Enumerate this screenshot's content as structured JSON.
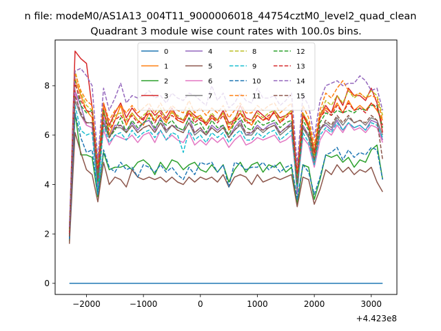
{
  "chart_data": {
    "type": "line",
    "suptitle": "n file: modeM0/AS1A13_004T11_9000006018_44754cztM0_level2_quad_clean",
    "title": "Quadrant 3 module wise count rates with 100.0s bins.",
    "xlabel": "",
    "ylabel": "",
    "x_offset_label": "+4.423e8",
    "xlim": [
      -2550,
      3450
    ],
    "ylim": [
      -0.45,
      9.85
    ],
    "xticks": [
      -2000,
      -1000,
      0,
      1000,
      2000,
      3000
    ],
    "xtick_labels": [
      "−2000",
      "−1000",
      "0",
      "1000",
      "2000",
      "3000"
    ],
    "yticks": [
      0,
      2,
      4,
      6,
      8
    ],
    "ytick_labels": [
      "0",
      "2",
      "4",
      "6",
      "8"
    ],
    "grid": false,
    "legend": {
      "placement": "top-center",
      "columns": 4
    },
    "x": [
      -2300,
      -2200,
      -2100,
      -2000,
      -1900,
      -1800,
      -1700,
      -1600,
      -1500,
      -1400,
      -1300,
      -1200,
      -1100,
      -1000,
      -900,
      -800,
      -700,
      -600,
      -500,
      -400,
      -300,
      -200,
      -100,
      0,
      100,
      200,
      300,
      400,
      500,
      600,
      700,
      800,
      900,
      1000,
      1100,
      1200,
      1300,
      1400,
      1500,
      1600,
      1700,
      1800,
      1900,
      2000,
      2100,
      2200,
      2300,
      2400,
      2500,
      2600,
      2700,
      2800,
      2900,
      3000,
      3100,
      3200
    ],
    "series": [
      {
        "name": "0",
        "color": "#1f77b4",
        "style": "solid",
        "values": [
          0,
          0,
          0,
          0,
          0,
          0,
          0,
          0,
          0,
          0,
          0,
          0,
          0,
          0,
          0,
          0,
          0,
          0,
          0,
          0,
          0,
          0,
          0,
          0,
          0,
          0,
          0,
          0,
          0,
          0,
          0,
          0,
          0,
          0,
          0,
          0,
          0,
          0,
          0,
          0,
          0,
          0,
          0,
          0,
          0,
          0,
          0,
          0,
          0,
          0,
          0,
          0,
          0,
          0,
          0,
          0
        ]
      },
      {
        "name": "1",
        "color": "#ff7f0e",
        "style": "solid",
        "values": [
          2.0,
          8.3,
          7.6,
          7.0,
          6.7,
          3.9,
          7.1,
          6.0,
          6.6,
          7.2,
          6.4,
          6.9,
          6.6,
          6.4,
          6.9,
          6.6,
          6.8,
          6.5,
          7.0,
          6.6,
          6.5,
          6.9,
          6.7,
          6.8,
          6.4,
          6.7,
          6.6,
          6.9,
          6.2,
          6.5,
          6.9,
          6.6,
          6.4,
          6.8,
          6.6,
          6.7,
          6.9,
          6.5,
          6.8,
          6.9,
          3.8,
          6.8,
          6.3,
          5.2,
          6.7,
          7.1,
          6.9,
          7.3,
          6.9,
          7.4,
          7.0,
          7.2,
          7.0,
          7.3,
          7.0,
          6.6
        ]
      },
      {
        "name": "2",
        "color": "#2ca02c",
        "style": "solid",
        "values": [
          1.7,
          6.9,
          5.2,
          5.2,
          5.1,
          3.5,
          5.3,
          4.6,
          4.7,
          4.7,
          4.8,
          4.6,
          4.9,
          5.0,
          4.8,
          4.4,
          4.9,
          4.6,
          5.0,
          4.9,
          4.6,
          4.8,
          4.9,
          4.6,
          4.5,
          4.8,
          4.5,
          4.8,
          4.1,
          4.6,
          4.9,
          4.5,
          4.8,
          4.9,
          4.5,
          4.8,
          4.7,
          4.9,
          4.5,
          4.7,
          3.2,
          4.8,
          4.7,
          3.4,
          4.2,
          5.2,
          5.1,
          5.2,
          4.9,
          5.1,
          4.7,
          5.0,
          4.9,
          5.4,
          5.6,
          4.2
        ]
      },
      {
        "name": "3",
        "color": "#d62728",
        "style": "solid",
        "values": [
          2.1,
          9.4,
          9.1,
          8.9,
          7.1,
          4.5,
          7.3,
          6.4,
          6.9,
          7.3,
          6.7,
          7.1,
          6.8,
          6.6,
          7.1,
          6.8,
          7.0,
          6.7,
          7.1,
          6.7,
          6.6,
          7.0,
          6.8,
          6.6,
          6.5,
          6.8,
          6.6,
          7.0,
          6.5,
          6.6,
          7.2,
          6.7,
          6.6,
          7.0,
          6.8,
          6.6,
          7.0,
          6.7,
          6.8,
          7.0,
          4.2,
          6.9,
          6.4,
          5.3,
          6.8,
          7.2,
          6.9,
          7.6,
          7.2,
          7.9,
          7.6,
          7.6,
          7.4,
          7.9,
          7.3,
          6.1
        ]
      },
      {
        "name": "4",
        "color": "#9467bd",
        "style": "solid",
        "values": [
          1.9,
          7.8,
          7.2,
          6.4,
          6.3,
          3.7,
          6.7,
          5.9,
          6.4,
          6.4,
          6.2,
          6.5,
          6.2,
          6.5,
          6.6,
          6.2,
          6.7,
          6.2,
          6.4,
          6.3,
          6.2,
          6.7,
          6.1,
          6.3,
          6.0,
          6.4,
          6.2,
          6.4,
          5.9,
          6.3,
          6.6,
          6.0,
          6.1,
          6.4,
          6.2,
          6.4,
          6.5,
          6.1,
          6.3,
          6.5,
          3.6,
          6.4,
          6.0,
          4.9,
          6.3,
          6.4,
          6.2,
          6.6,
          6.2,
          6.5,
          6.3,
          6.4,
          6.2,
          6.6,
          6.5,
          5.8
        ]
      },
      {
        "name": "5",
        "color": "#8c564b",
        "style": "solid",
        "values": [
          1.6,
          6.1,
          5.3,
          4.6,
          4.4,
          3.3,
          4.9,
          4.0,
          4.3,
          4.2,
          3.9,
          4.6,
          4.3,
          4.2,
          4.3,
          4.2,
          4.3,
          4.1,
          4.3,
          4.1,
          4.0,
          4.3,
          4.1,
          4.3,
          4.2,
          4.3,
          4.1,
          4.4,
          3.9,
          4.3,
          4.4,
          4.3,
          4.0,
          4.4,
          4.1,
          4.2,
          4.3,
          4.2,
          4.3,
          4.4,
          3.1,
          4.3,
          4.2,
          3.2,
          3.8,
          4.6,
          4.4,
          4.8,
          4.5,
          4.7,
          4.4,
          4.6,
          4.5,
          4.7,
          4.1,
          3.7
        ]
      },
      {
        "name": "6",
        "color": "#e377c2",
        "style": "solid",
        "values": [
          2.0,
          7.8,
          6.8,
          6.4,
          6.3,
          4.4,
          6.2,
          5.6,
          6.0,
          5.9,
          5.8,
          6.0,
          5.7,
          6.0,
          6.1,
          5.7,
          6.2,
          5.8,
          6.0,
          5.8,
          5.7,
          6.1,
          5.6,
          5.8,
          5.6,
          5.9,
          5.7,
          5.9,
          5.5,
          5.8,
          6.0,
          5.6,
          5.7,
          5.9,
          5.8,
          5.9,
          6.0,
          5.7,
          5.8,
          6.0,
          3.9,
          5.9,
          5.6,
          4.7,
          5.8,
          6.2,
          6.0,
          6.4,
          6.1,
          6.5,
          6.2,
          6.3,
          6.1,
          6.4,
          6.3,
          5.7
        ]
      },
      {
        "name": "7",
        "color": "#7f7f7f",
        "style": "solid",
        "values": [
          2.0,
          7.4,
          6.8,
          6.5,
          6.5,
          4.4,
          6.5,
          5.9,
          6.3,
          6.3,
          6.1,
          6.4,
          6.1,
          6.3,
          6.4,
          6.1,
          6.5,
          6.1,
          6.4,
          6.2,
          6.1,
          6.5,
          6.0,
          6.2,
          6.0,
          6.3,
          6.1,
          6.3,
          5.9,
          6.2,
          6.4,
          6.0,
          6.0,
          6.3,
          6.1,
          6.3,
          6.4,
          6.0,
          6.2,
          6.4,
          3.8,
          6.3,
          5.9,
          4.8,
          6.2,
          6.5,
          6.3,
          6.7,
          6.4,
          6.7,
          6.5,
          6.6,
          6.4,
          6.7,
          6.6,
          6.0
        ]
      },
      {
        "name": "8",
        "color": "#bcbd22",
        "style": "dashed",
        "values": [
          2.1,
          8.6,
          7.7,
          7.2,
          7.0,
          4.7,
          7.0,
          6.3,
          6.8,
          6.9,
          6.6,
          6.9,
          6.6,
          6.8,
          7.0,
          6.6,
          7.1,
          6.6,
          6.9,
          6.8,
          6.6,
          7.1,
          6.6,
          6.8,
          6.5,
          6.9,
          6.6,
          6.9,
          6.4,
          6.7,
          7.0,
          6.6,
          6.6,
          6.9,
          6.7,
          6.9,
          7.0,
          6.6,
          6.8,
          7.0,
          4.3,
          6.9,
          6.5,
          5.4,
          6.8,
          7.4,
          7.2,
          7.6,
          7.3,
          7.8,
          7.5,
          7.7,
          7.5,
          7.8,
          7.6,
          6.8
        ]
      },
      {
        "name": "9",
        "color": "#17becf",
        "style": "dashed",
        "values": [
          1.9,
          7.2,
          6.2,
          6.0,
          6.1,
          3.6,
          6.4,
          5.7,
          6.0,
          6.1,
          5.8,
          6.2,
          5.9,
          6.1,
          6.2,
          5.9,
          6.2,
          5.8,
          6.1,
          6.0,
          5.3,
          6.2,
          5.8,
          6.0,
          5.7,
          6.1,
          5.9,
          6.1,
          5.7,
          6.0,
          6.2,
          5.8,
          5.8,
          6.1,
          5.9,
          6.1,
          6.2,
          5.8,
          6.0,
          6.2,
          3.9,
          6.1,
          5.7,
          4.8,
          6.0,
          6.3,
          6.1,
          6.5,
          6.2,
          6.5,
          6.3,
          6.4,
          6.2,
          6.5,
          6.4,
          5.9
        ]
      },
      {
        "name": "10",
        "color": "#1f77b4",
        "style": "dashed",
        "values": [
          1.8,
          6.9,
          5.9,
          5.3,
          5.4,
          3.6,
          5.4,
          4.7,
          4.5,
          4.9,
          4.6,
          4.7,
          4.3,
          4.8,
          4.7,
          4.5,
          4.8,
          4.5,
          4.7,
          4.4,
          4.2,
          4.7,
          4.4,
          4.9,
          4.8,
          4.9,
          4.5,
          4.8,
          3.9,
          4.9,
          4.8,
          4.6,
          4.7,
          4.7,
          4.9,
          4.6,
          4.8,
          4.5,
          4.7,
          4.8,
          3.4,
          4.8,
          4.5,
          3.6,
          4.3,
          5.2,
          5.3,
          5.5,
          5.0,
          5.4,
          5.1,
          5.3,
          5.2,
          5.5,
          5.4,
          4.2
        ]
      },
      {
        "name": "11",
        "color": "#ff7f0e",
        "style": "dashed",
        "values": [
          2.1,
          8.5,
          7.8,
          7.4,
          7.2,
          4.8,
          7.3,
          6.6,
          7.0,
          7.2,
          6.9,
          7.2,
          6.9,
          7.1,
          7.3,
          6.9,
          7.3,
          6.9,
          7.2,
          7.0,
          6.9,
          7.4,
          6.9,
          7.1,
          6.8,
          7.1,
          6.9,
          7.2,
          6.7,
          7.0,
          7.3,
          6.9,
          6.9,
          7.2,
          7.0,
          7.2,
          7.3,
          6.9,
          7.1,
          7.3,
          4.5,
          7.2,
          6.7,
          5.6,
          7.0,
          7.7,
          7.5,
          7.9,
          8.2,
          7.8,
          7.6,
          7.7,
          7.5,
          7.6,
          7.5,
          6.6
        ]
      },
      {
        "name": "12",
        "color": "#2ca02c",
        "style": "dashed",
        "values": [
          2.2,
          8.2,
          7.2,
          6.9,
          7.0,
          4.1,
          7.0,
          5.9,
          6.2,
          6.7,
          6.1,
          6.6,
          6.3,
          6.5,
          6.7,
          6.3,
          6.6,
          6.4,
          6.6,
          6.3,
          6.2,
          6.7,
          6.4,
          6.5,
          6.1,
          6.6,
          6.3,
          6.4,
          6.0,
          6.5,
          6.7,
          6.3,
          6.2,
          6.6,
          6.4,
          6.5,
          6.6,
          6.3,
          6.5,
          6.6,
          4.0,
          6.6,
          6.2,
          5.0,
          6.5,
          6.9,
          6.8,
          7.0,
          6.9,
          7.0,
          6.9,
          7.1,
          7.0,
          7.2,
          7.2,
          6.3
        ]
      },
      {
        "name": "13",
        "color": "#d62728",
        "style": "dashed",
        "values": [
          2.0,
          8.1,
          7.4,
          7.0,
          6.9,
          4.6,
          6.9,
          6.2,
          6.6,
          6.8,
          6.5,
          6.8,
          6.5,
          6.7,
          6.9,
          6.5,
          6.9,
          6.6,
          6.8,
          6.6,
          6.5,
          6.9,
          6.5,
          6.7,
          6.4,
          6.7,
          6.5,
          6.8,
          6.3,
          6.6,
          6.9,
          6.5,
          6.5,
          6.8,
          6.6,
          6.8,
          6.9,
          6.5,
          6.7,
          6.9,
          4.4,
          6.8,
          6.4,
          5.3,
          6.7,
          7.0,
          6.8,
          7.2,
          6.9,
          7.3,
          7.0,
          7.1,
          6.9,
          7.3,
          7.1,
          6.4
        ]
      },
      {
        "name": "14",
        "color": "#9467bd",
        "style": "dashed",
        "values": [
          2.3,
          8.6,
          8.7,
          8.4,
          8.0,
          5.0,
          7.9,
          7.0,
          7.5,
          8.1,
          7.3,
          7.6,
          7.5,
          7.6,
          7.8,
          7.5,
          7.6,
          7.3,
          7.7,
          7.5,
          7.4,
          7.7,
          7.6,
          7.4,
          7.2,
          8.0,
          7.4,
          7.7,
          7.1,
          7.3,
          7.7,
          7.4,
          7.3,
          7.9,
          7.5,
          7.5,
          7.6,
          7.2,
          7.4,
          7.7,
          4.8,
          7.6,
          7.2,
          5.9,
          7.4,
          8.0,
          8.1,
          8.2,
          8.0,
          8.1,
          8.1,
          8.4,
          8.2,
          7.8,
          7.9,
          7.0
        ]
      },
      {
        "name": "15",
        "color": "#8c564b",
        "style": "dashed",
        "values": [
          1.9,
          7.6,
          6.9,
          6.5,
          6.5,
          4.2,
          6.5,
          5.9,
          6.3,
          6.4,
          6.1,
          6.4,
          6.1,
          6.3,
          6.4,
          6.1,
          6.5,
          6.2,
          6.4,
          6.2,
          6.1,
          6.5,
          6.1,
          6.3,
          6.0,
          6.3,
          6.1,
          6.3,
          5.9,
          6.2,
          6.5,
          6.1,
          6.1,
          6.3,
          6.2,
          6.3,
          6.4,
          6.1,
          6.3,
          6.4,
          4.1,
          6.3,
          6.0,
          5.0,
          6.2,
          6.6,
          6.4,
          6.8,
          6.5,
          6.8,
          6.5,
          6.6,
          6.5,
          6.8,
          6.6,
          5.0
        ]
      }
    ]
  }
}
